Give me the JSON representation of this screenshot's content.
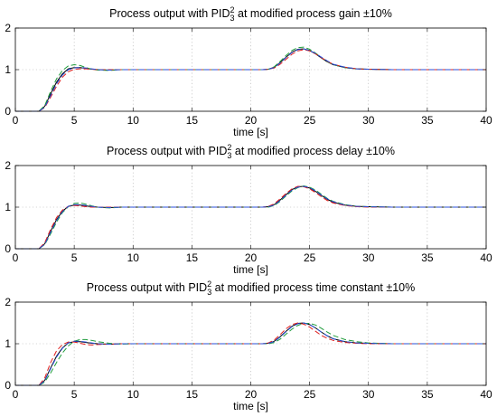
{
  "chart_data": [
    {
      "type": "line",
      "title": {
        "pre": "Process output with PID",
        "sup": "2",
        "sub": "3",
        "post": " at modified process gain ±10%"
      },
      "xlabel": "time [s]",
      "ylabel": "",
      "xlim": [
        0,
        40
      ],
      "ylim": [
        0,
        2
      ],
      "xticks": [
        0,
        5,
        10,
        15,
        20,
        25,
        30,
        35,
        40
      ],
      "yticks": [
        0,
        1,
        2
      ],
      "grid": true,
      "legend": "none",
      "series": [
        {
          "color": "#000000",
          "dash": "solid",
          "x": [
            0,
            2.0,
            2.5,
            3.0,
            3.5,
            4.0,
            4.5,
            5.0,
            5.5,
            6.0,
            6.5,
            7.0,
            8.0,
            9.0,
            10.0,
            20.0,
            21.0,
            21.5,
            22.0,
            22.5,
            23.0,
            23.5,
            24.0,
            24.5,
            25.0,
            25.5,
            26.0,
            26.5,
            27.0,
            28.0,
            29.0,
            30.0,
            32.0,
            35.0,
            40.0
          ],
          "y": [
            0,
            0.0,
            0.12,
            0.42,
            0.7,
            0.9,
            1.02,
            1.05,
            1.05,
            1.03,
            1.01,
            1.0,
            0.99,
            1.0,
            1.0,
            1.0,
            1.0,
            1.01,
            1.06,
            1.17,
            1.3,
            1.42,
            1.49,
            1.5,
            1.46,
            1.38,
            1.28,
            1.19,
            1.12,
            1.05,
            1.02,
            1.01,
            1.0,
            1.0,
            1.0
          ]
        },
        {
          "color": "#1f9c3c",
          "dash": "dashed",
          "x": [
            0,
            2.0,
            2.5,
            3.0,
            3.5,
            4.0,
            4.5,
            5.0,
            5.5,
            6.0,
            6.5,
            7.0,
            8.0,
            9.0,
            10.0,
            20.0,
            21.0,
            21.5,
            22.0,
            22.5,
            23.0,
            23.5,
            24.0,
            24.5,
            25.0,
            25.5,
            26.0,
            26.5,
            27.0,
            28.0,
            29.0,
            30.0,
            32.0,
            35.0,
            40.0
          ],
          "y": [
            0,
            0.0,
            0.14,
            0.48,
            0.78,
            0.98,
            1.09,
            1.12,
            1.1,
            1.05,
            1.01,
            0.99,
            0.98,
            1.0,
            1.0,
            1.0,
            1.0,
            1.01,
            1.07,
            1.2,
            1.34,
            1.46,
            1.53,
            1.54,
            1.49,
            1.4,
            1.29,
            1.19,
            1.12,
            1.05,
            1.02,
            1.01,
            1.0,
            1.0,
            1.0
          ]
        },
        {
          "color": "#e01e1e",
          "dash": "dashed",
          "x": [
            0,
            2.0,
            2.5,
            3.0,
            3.5,
            4.0,
            4.5,
            5.0,
            5.5,
            6.0,
            6.5,
            7.0,
            8.0,
            9.0,
            10.0,
            20.0,
            21.0,
            21.5,
            22.0,
            22.5,
            23.0,
            23.5,
            24.0,
            24.5,
            25.0,
            25.5,
            26.0,
            26.5,
            27.0,
            28.0,
            29.0,
            30.0,
            32.0,
            35.0,
            40.0
          ],
          "y": [
            0,
            0.0,
            0.09,
            0.34,
            0.6,
            0.82,
            0.95,
            1.01,
            1.02,
            1.02,
            1.01,
            1.0,
            1.0,
            1.0,
            1.0,
            1.0,
            1.0,
            1.01,
            1.04,
            1.13,
            1.25,
            1.37,
            1.45,
            1.48,
            1.45,
            1.38,
            1.29,
            1.2,
            1.13,
            1.06,
            1.02,
            1.01,
            1.0,
            1.0,
            1.0
          ]
        },
        {
          "color": "#2a4fd8",
          "dash": "dashed",
          "x": [
            0,
            2.0,
            2.5,
            3.0,
            3.5,
            4.0,
            4.5,
            5.0,
            5.5,
            6.0,
            6.5,
            7.0,
            8.0,
            9.0,
            10.0,
            20.0,
            21.0,
            21.5,
            22.0,
            22.5,
            23.0,
            23.5,
            24.0,
            24.5,
            25.0,
            25.5,
            26.0,
            26.5,
            27.0,
            28.0,
            29.0,
            30.0,
            32.0,
            35.0,
            40.0
          ],
          "y": [
            0,
            0.0,
            0.1,
            0.38,
            0.66,
            0.87,
            1.0,
            1.04,
            1.05,
            1.04,
            1.02,
            1.0,
            0.99,
            1.0,
            1.0,
            1.0,
            1.0,
            1.01,
            1.05,
            1.16,
            1.29,
            1.41,
            1.48,
            1.5,
            1.46,
            1.39,
            1.3,
            1.21,
            1.13,
            1.06,
            1.02,
            1.01,
            1.0,
            1.0,
            1.0
          ]
        }
      ]
    },
    {
      "type": "line",
      "title": {
        "pre": "Process output with PID",
        "sup": "2",
        "sub": "3",
        "post": " at modified process delay ±10%"
      },
      "xlabel": "time [s]",
      "ylabel": "",
      "xlim": [
        0,
        40
      ],
      "ylim": [
        0,
        2
      ],
      "xticks": [
        0,
        5,
        10,
        15,
        20,
        25,
        30,
        35,
        40
      ],
      "yticks": [
        0,
        1,
        2
      ],
      "grid": true,
      "legend": "none",
      "series": [
        {
          "color": "#000000",
          "dash": "solid",
          "x": [
            0,
            2.0,
            2.5,
            3.0,
            3.5,
            4.0,
            4.5,
            5.0,
            5.5,
            6.0,
            6.5,
            7.0,
            8.0,
            9.0,
            10.0,
            20.0,
            21.0,
            21.5,
            22.0,
            22.5,
            23.0,
            23.5,
            24.0,
            24.5,
            25.0,
            25.5,
            26.0,
            26.5,
            27.0,
            28.0,
            29.0,
            30.0,
            32.0,
            35.0,
            40.0
          ],
          "y": [
            0,
            0.0,
            0.12,
            0.42,
            0.7,
            0.9,
            1.02,
            1.05,
            1.05,
            1.03,
            1.01,
            1.0,
            0.99,
            1.0,
            1.0,
            1.0,
            1.0,
            1.01,
            1.06,
            1.17,
            1.3,
            1.42,
            1.49,
            1.5,
            1.46,
            1.38,
            1.28,
            1.19,
            1.12,
            1.05,
            1.02,
            1.01,
            1.0,
            1.0,
            1.0
          ]
        },
        {
          "color": "#1f9c3c",
          "dash": "dashed",
          "x": [
            0,
            2.0,
            2.5,
            3.0,
            3.5,
            4.0,
            4.5,
            5.0,
            5.5,
            6.0,
            6.5,
            7.0,
            8.0,
            9.0,
            10.0,
            20.0,
            21.0,
            21.5,
            22.0,
            22.5,
            23.0,
            23.5,
            24.0,
            24.5,
            25.0,
            25.5,
            26.0,
            26.5,
            27.0,
            28.0,
            29.0,
            30.0,
            32.0,
            35.0,
            40.0
          ],
          "y": [
            0,
            0.0,
            0.1,
            0.36,
            0.64,
            0.87,
            1.01,
            1.09,
            1.1,
            1.07,
            1.03,
            1.0,
            0.98,
            1.0,
            1.0,
            1.0,
            1.0,
            1.0,
            1.04,
            1.14,
            1.27,
            1.39,
            1.47,
            1.51,
            1.48,
            1.41,
            1.31,
            1.21,
            1.14,
            1.06,
            1.02,
            1.01,
            1.0,
            1.0,
            1.0
          ]
        },
        {
          "color": "#e01e1e",
          "dash": "dashed",
          "x": [
            0,
            2.0,
            2.5,
            3.0,
            3.5,
            4.0,
            4.5,
            5.0,
            5.5,
            6.0,
            6.5,
            7.0,
            8.0,
            9.0,
            10.0,
            20.0,
            21.0,
            21.5,
            22.0,
            22.5,
            23.0,
            23.5,
            24.0,
            24.5,
            25.0,
            25.5,
            26.0,
            26.5,
            27.0,
            28.0,
            29.0,
            30.0,
            32.0,
            35.0,
            40.0
          ],
          "y": [
            0,
            0.0,
            0.15,
            0.47,
            0.75,
            0.93,
            1.02,
            1.04,
            1.03,
            1.01,
            1.0,
            1.0,
            1.0,
            1.0,
            1.0,
            1.0,
            1.0,
            1.02,
            1.08,
            1.2,
            1.33,
            1.44,
            1.5,
            1.49,
            1.44,
            1.35,
            1.25,
            1.16,
            1.1,
            1.04,
            1.01,
            1.0,
            1.0,
            1.0,
            1.0
          ]
        },
        {
          "color": "#2a4fd8",
          "dash": "dashed",
          "x": [
            0,
            2.0,
            2.5,
            3.0,
            3.5,
            4.0,
            4.5,
            5.0,
            5.5,
            6.0,
            6.5,
            7.0,
            8.0,
            9.0,
            10.0,
            20.0,
            21.0,
            21.5,
            22.0,
            22.5,
            23.0,
            23.5,
            24.0,
            24.5,
            25.0,
            25.5,
            26.0,
            26.5,
            27.0,
            28.0,
            29.0,
            30.0,
            32.0,
            35.0,
            40.0
          ],
          "y": [
            0,
            0.0,
            0.11,
            0.4,
            0.68,
            0.89,
            1.02,
            1.06,
            1.06,
            1.04,
            1.02,
            1.0,
            0.99,
            1.0,
            1.0,
            1.0,
            1.0,
            1.01,
            1.05,
            1.16,
            1.29,
            1.41,
            1.48,
            1.5,
            1.47,
            1.39,
            1.29,
            1.2,
            1.13,
            1.05,
            1.02,
            1.01,
            1.0,
            1.0,
            1.0
          ]
        }
      ]
    },
    {
      "type": "line",
      "title": {
        "pre": "Process output with PID",
        "sup": "2",
        "sub": "3",
        "post": " at modified process time constant ±10%"
      },
      "xlabel": "time [s]",
      "ylabel": "",
      "xlim": [
        0,
        40
      ],
      "ylim": [
        0,
        2
      ],
      "xticks": [
        0,
        5,
        10,
        15,
        20,
        25,
        30,
        35,
        40
      ],
      "yticks": [
        0,
        1,
        2
      ],
      "grid": true,
      "legend": "none",
      "series": [
        {
          "color": "#000000",
          "dash": "solid",
          "x": [
            0,
            2.0,
            2.5,
            3.0,
            3.5,
            4.0,
            4.5,
            5.0,
            5.5,
            6.0,
            6.5,
            7.0,
            8.0,
            9.0,
            10.0,
            20.0,
            21.0,
            21.5,
            22.0,
            22.5,
            23.0,
            23.5,
            24.0,
            24.5,
            25.0,
            25.5,
            26.0,
            26.5,
            27.0,
            28.0,
            29.0,
            30.0,
            32.0,
            35.0,
            40.0
          ],
          "y": [
            0,
            0.0,
            0.12,
            0.42,
            0.7,
            0.9,
            1.02,
            1.05,
            1.05,
            1.03,
            1.01,
            1.0,
            0.99,
            1.0,
            1.0,
            1.0,
            1.0,
            1.01,
            1.06,
            1.17,
            1.3,
            1.42,
            1.49,
            1.5,
            1.46,
            1.38,
            1.28,
            1.19,
            1.12,
            1.05,
            1.02,
            1.01,
            1.0,
            1.0,
            1.0
          ]
        },
        {
          "color": "#1f9c3c",
          "dash": "dashed",
          "x": [
            0,
            2.0,
            2.5,
            3.0,
            3.5,
            4.0,
            4.5,
            5.0,
            5.5,
            6.0,
            6.5,
            7.0,
            8.0,
            9.0,
            10.0,
            20.0,
            21.0,
            21.5,
            22.0,
            22.5,
            23.0,
            23.5,
            24.0,
            24.5,
            25.0,
            25.5,
            26.0,
            26.5,
            27.0,
            28.0,
            29.0,
            30.0,
            32.0,
            35.0,
            40.0
          ],
          "y": [
            0,
            0.0,
            0.08,
            0.3,
            0.55,
            0.78,
            0.95,
            1.06,
            1.1,
            1.1,
            1.08,
            1.05,
            1.01,
            0.99,
            1.0,
            1.0,
            1.0,
            1.0,
            1.03,
            1.11,
            1.23,
            1.35,
            1.44,
            1.49,
            1.49,
            1.45,
            1.37,
            1.28,
            1.2,
            1.1,
            1.05,
            1.02,
            1.0,
            1.0,
            1.0
          ]
        },
        {
          "color": "#e01e1e",
          "dash": "dashed",
          "x": [
            0,
            2.0,
            2.5,
            3.0,
            3.5,
            4.0,
            4.5,
            5.0,
            5.5,
            6.0,
            6.5,
            7.0,
            8.0,
            9.0,
            10.0,
            20.0,
            21.0,
            21.5,
            22.0,
            22.5,
            23.0,
            23.5,
            24.0,
            24.5,
            25.0,
            25.5,
            26.0,
            26.5,
            27.0,
            28.0,
            29.0,
            30.0,
            32.0,
            35.0,
            40.0
          ],
          "y": [
            0,
            0.0,
            0.18,
            0.55,
            0.83,
            0.98,
            1.04,
            1.04,
            1.01,
            0.98,
            0.97,
            0.98,
            0.99,
            1.0,
            1.0,
            1.0,
            1.0,
            1.02,
            1.09,
            1.22,
            1.36,
            1.46,
            1.5,
            1.47,
            1.4,
            1.3,
            1.2,
            1.13,
            1.08,
            1.03,
            1.01,
            1.0,
            1.0,
            1.0,
            1.0
          ]
        },
        {
          "color": "#2a4fd8",
          "dash": "dashed",
          "x": [
            0,
            2.0,
            2.5,
            3.0,
            3.5,
            4.0,
            4.5,
            5.0,
            5.5,
            6.0,
            6.5,
            7.0,
            8.0,
            9.0,
            10.0,
            20.0,
            21.0,
            21.5,
            22.0,
            22.5,
            23.0,
            23.5,
            24.0,
            24.5,
            25.0,
            25.5,
            26.0,
            26.5,
            27.0,
            28.0,
            29.0,
            30.0,
            32.0,
            35.0,
            40.0
          ],
          "y": [
            0,
            0.0,
            0.11,
            0.4,
            0.68,
            0.89,
            1.02,
            1.06,
            1.06,
            1.04,
            1.02,
            1.0,
            0.99,
            1.0,
            1.0,
            1.0,
            1.0,
            1.01,
            1.05,
            1.16,
            1.29,
            1.41,
            1.48,
            1.5,
            1.46,
            1.38,
            1.28,
            1.19,
            1.12,
            1.05,
            1.02,
            1.01,
            1.0,
            1.0,
            1.0
          ]
        }
      ]
    }
  ]
}
